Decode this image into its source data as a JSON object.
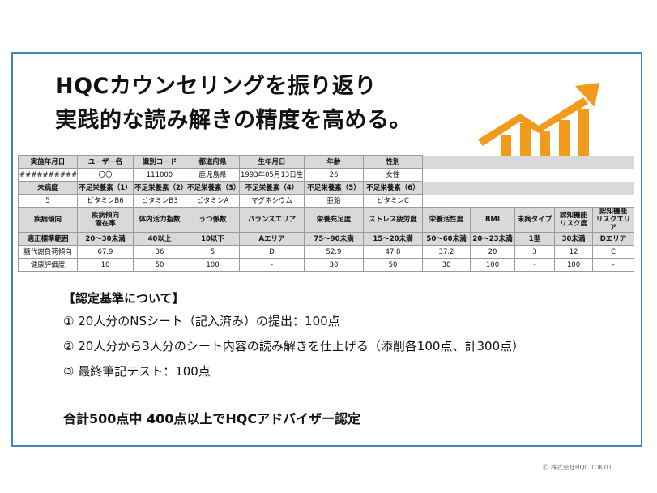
{
  "title": {
    "line1": "HQCカウンセリングを振り返り",
    "line2": "実践的な読み解きの精度を高める。"
  },
  "icon": {
    "name": "growth-chart-arrow-icon",
    "color": "#f19a1c"
  },
  "frame": {
    "border_color": "#3f86c4"
  },
  "table": {
    "row1_headers": [
      "実施年月日",
      "ユーザー名",
      "識別コード",
      "都道府県",
      "生年月日",
      "年齢",
      "性別"
    ],
    "row1_values": [
      "##########",
      "〇〇",
      "111000",
      "鹿児島県",
      "1993年05月13日生",
      "26",
      "女性"
    ],
    "row2_headers": [
      "未病度",
      "不足栄養素（1）",
      "不足栄養素（2）",
      "不足栄養素（3）",
      "不足栄養素（4）",
      "不足栄養素（5）",
      "不足栄養素（6）"
    ],
    "row2_values": [
      "5",
      "ビタミンB6",
      "ビタミンB3",
      "ビタミンA",
      "マグネシウム",
      "亜鉛",
      "ビタミンC"
    ],
    "row3_headers": [
      "疾病傾向",
      "疾病傾向\n潜在率",
      "体内活力指数",
      "うつ係数",
      "バランスエリア",
      "栄養充足度",
      "ストレス疲労度",
      "栄養活性度",
      "BMI",
      "未病タイプ",
      "認知機能\nリスク度",
      "認知機能\nリスクエリア"
    ],
    "standard": [
      "適正標準範囲",
      "20〜30未満",
      "40以上",
      "10以下",
      "Aエリア",
      "75〜90未満",
      "15〜20未満",
      "50〜60未満",
      "20〜23未満",
      "1型",
      "30未満",
      "Dエリア"
    ],
    "metabolism": [
      "糖代謝負荷傾向",
      "67.9",
      "36",
      "5",
      "D",
      "52.9",
      "47.8",
      "37.2",
      "20",
      "3",
      "12",
      "C"
    ],
    "health": [
      "健康評価度",
      "10",
      "50",
      "100",
      "-",
      "30",
      "50",
      "30",
      "100",
      "-",
      "100",
      "-"
    ]
  },
  "criteria": {
    "heading": "【認定基準について】",
    "items": [
      "① 20人分のNSシート（記入済み）の提出：100点",
      "② 20人分から3人分のシート内容の読み解きを仕上げる（添削各100点、計300点）",
      "③ 最終筆記テスト：100点"
    ]
  },
  "total": "合計500点中 400点以上でHQCアドバイザー認定",
  "copyright": "Ⓒ 株式会社HQC TOKYO"
}
